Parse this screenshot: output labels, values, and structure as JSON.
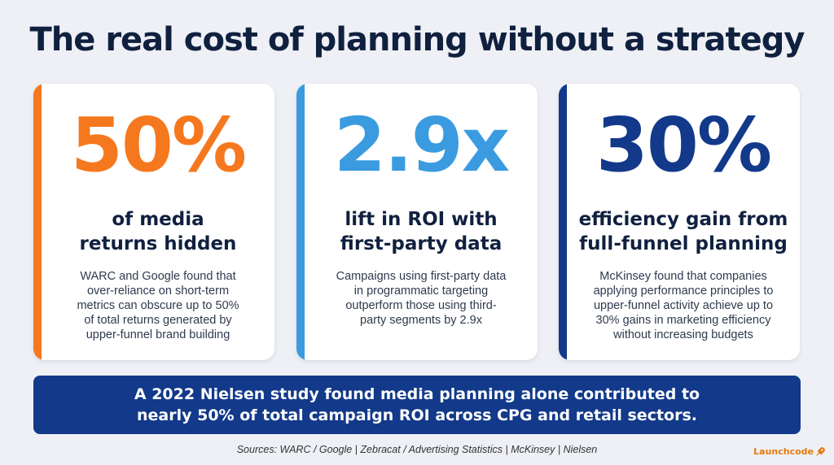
{
  "title": "The real cost of planning without a strategy",
  "cards": [
    {
      "stat": "50%",
      "heading": [
        "of media",
        "returns hidden"
      ],
      "description": [
        "WARC and Google found that",
        "over-reliance on short-term",
        "metrics can obscure up to 50%",
        "of total returns generated by",
        "upper-funnel brand building"
      ],
      "accent_color": "#f5781e"
    },
    {
      "stat": "2.9x",
      "heading": [
        "lift in ROI with",
        "first-party data"
      ],
      "description": [
        "Campaigns using first-party data",
        "in programmatic targeting",
        "outperform those using third-",
        "party segments by 2.9x"
      ],
      "accent_color": "#3a9be0"
    },
    {
      "stat": "30%",
      "heading": [
        "efficiency gain from",
        "full-funnel planning"
      ],
      "description": [
        "McKinsey found that companies",
        "applying performance principles to",
        "upper-funnel activity achieve up to",
        "30% gains in marketing efficiency",
        "without increasing budgets"
      ],
      "accent_color": "#12398a"
    }
  ],
  "banner": {
    "lines": [
      "A 2022 Nielsen study found media planning alone contributed to",
      "nearly 50% of total campaign ROI across CPG and retail sectors."
    ],
    "background_color": "#12398a"
  },
  "sources": "Sources: WARC / Google | Zebracat / Advertising Statistics | McKinsey | Nielsen",
  "logo": {
    "text": "Launchcode",
    "icon": "rocket-icon",
    "color": "#e47b12"
  }
}
